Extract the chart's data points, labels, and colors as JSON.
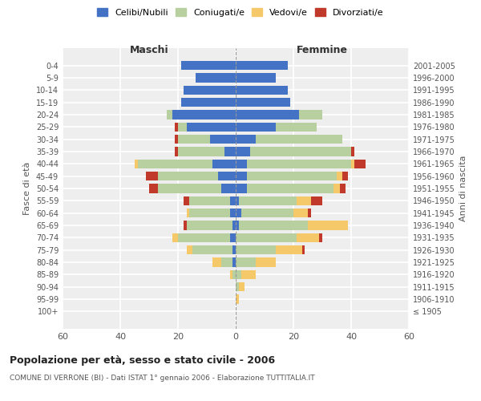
{
  "age_groups": [
    "100+",
    "95-99",
    "90-94",
    "85-89",
    "80-84",
    "75-79",
    "70-74",
    "65-69",
    "60-64",
    "55-59",
    "50-54",
    "45-49",
    "40-44",
    "35-39",
    "30-34",
    "25-29",
    "20-24",
    "15-19",
    "10-14",
    "5-9",
    "0-4"
  ],
  "birth_years": [
    "≤ 1905",
    "1906-1910",
    "1911-1915",
    "1916-1920",
    "1921-1925",
    "1926-1930",
    "1931-1935",
    "1936-1940",
    "1941-1945",
    "1946-1950",
    "1951-1955",
    "1956-1960",
    "1961-1965",
    "1966-1970",
    "1971-1975",
    "1976-1980",
    "1981-1985",
    "1986-1990",
    "1991-1995",
    "1996-2000",
    "2001-2005"
  ],
  "colors": {
    "celibe": "#4472c4",
    "coniugato": "#b8cfa0",
    "vedovo": "#f5c96a",
    "divorziato": "#c0392b"
  },
  "maschi": {
    "celibe": [
      0,
      0,
      0,
      0,
      1,
      1,
      2,
      1,
      2,
      2,
      5,
      6,
      8,
      4,
      9,
      17,
      22,
      19,
      18,
      14,
      19
    ],
    "coniugato": [
      0,
      0,
      0,
      1,
      4,
      14,
      18,
      16,
      14,
      14,
      22,
      21,
      26,
      16,
      11,
      3,
      2,
      0,
      0,
      0,
      0
    ],
    "vedovo": [
      0,
      0,
      0,
      1,
      3,
      2,
      2,
      0,
      1,
      0,
      0,
      0,
      1,
      0,
      0,
      0,
      0,
      0,
      0,
      0,
      0
    ],
    "divorziato": [
      0,
      0,
      0,
      0,
      0,
      0,
      0,
      1,
      0,
      2,
      3,
      4,
      0,
      1,
      1,
      1,
      0,
      0,
      0,
      0,
      0
    ]
  },
  "femmine": {
    "celibe": [
      0,
      0,
      0,
      0,
      0,
      0,
      0,
      1,
      2,
      1,
      4,
      4,
      4,
      5,
      7,
      14,
      22,
      19,
      18,
      14,
      18
    ],
    "coniugato": [
      0,
      0,
      1,
      2,
      7,
      14,
      21,
      24,
      18,
      20,
      30,
      31,
      36,
      35,
      30,
      14,
      8,
      0,
      0,
      0,
      0
    ],
    "vedovo": [
      0,
      1,
      2,
      5,
      7,
      9,
      8,
      14,
      5,
      5,
      2,
      2,
      1,
      0,
      0,
      0,
      0,
      0,
      0,
      0,
      0
    ],
    "divorziato": [
      0,
      0,
      0,
      0,
      0,
      1,
      1,
      0,
      1,
      4,
      2,
      2,
      4,
      1,
      0,
      0,
      0,
      0,
      0,
      0,
      0
    ]
  },
  "xlim": 60,
  "title": "Popolazione per età, sesso e stato civile - 2006",
  "subtitle": "COMUNE DI VERRONE (BI) - Dati ISTAT 1° gennaio 2006 - Elaborazione TUTTITALIA.IT",
  "ylabel_left": "Fasce di età",
  "ylabel_right": "Anni di nascita",
  "xlabel_maschi": "Maschi",
  "xlabel_femmine": "Femmine",
  "legend_labels": [
    "Celibi/Nubili",
    "Coniugati/e",
    "Vedovi/e",
    "Divorziati/e"
  ],
  "bg_color": "#ffffff",
  "plot_bg": "#eeeeee",
  "grid_color": "#ffffff"
}
